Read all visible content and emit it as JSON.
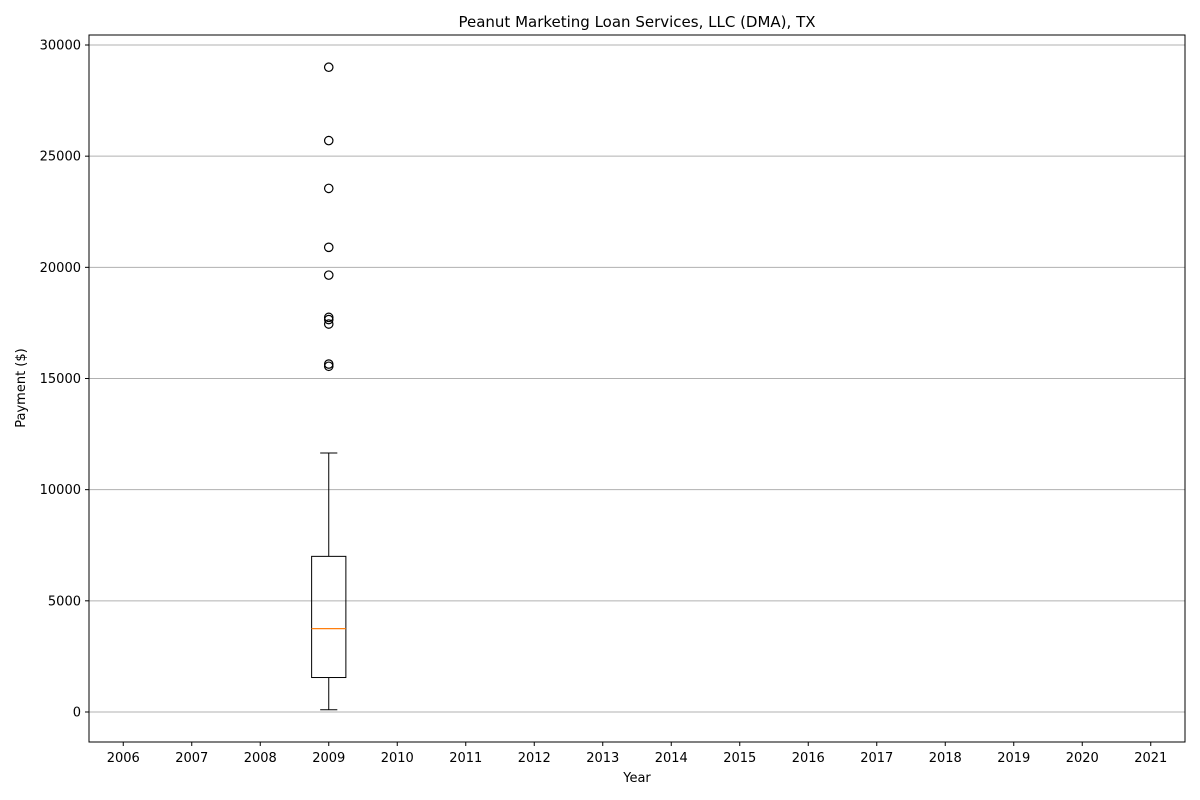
{
  "chart_data": {
    "type": "box",
    "title": "Peanut Marketing Loan Services, LLC (DMA), TX",
    "xlabel": "Year",
    "ylabel": "Payment ($)",
    "categories": [
      "2006",
      "2007",
      "2008",
      "2009",
      "2010",
      "2011",
      "2012",
      "2013",
      "2014",
      "2015",
      "2016",
      "2017",
      "2018",
      "2019",
      "2020",
      "2021"
    ],
    "ylim": [
      -1350,
      30450
    ],
    "yticks": [
      0,
      5000,
      10000,
      15000,
      20000,
      25000,
      30000
    ],
    "ytick_labels": [
      "0",
      "5000",
      "10000",
      "15000",
      "20000",
      "25000",
      "30000"
    ],
    "grid": "y",
    "boxes": [
      {
        "category": "2009",
        "whisker_low": 100,
        "q1": 1550,
        "median": 3750,
        "q3": 7000,
        "whisker_high": 11650,
        "outliers": [
          15550,
          15650,
          17450,
          17650,
          17750,
          19650,
          20900,
          23550,
          25700,
          29000
        ]
      }
    ],
    "colors": {
      "median": "#ff7f0e",
      "box": "#000000",
      "grid": "#b0b0b0"
    }
  }
}
